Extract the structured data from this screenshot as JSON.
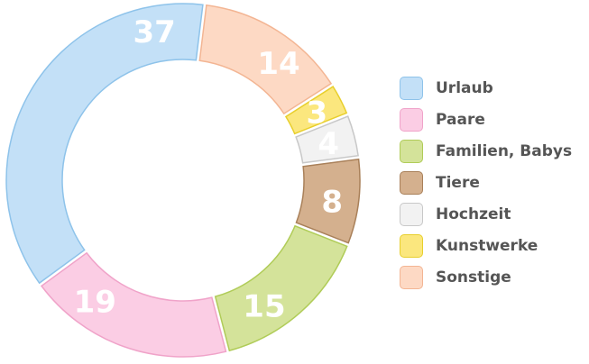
{
  "chart_data": {
    "type": "pie",
    "donut": true,
    "title": "",
    "legend_position": "right",
    "categories": [
      "Urlaub",
      "Paare",
      "Familien, Babys",
      "Tiere",
      "Hochzeit",
      "Kunstwerke",
      "Sonstige"
    ],
    "values": [
      37,
      19,
      15,
      8,
      4,
      3,
      14
    ],
    "fill_colors": [
      "#c3e0f7",
      "#fbcde4",
      "#d4e39a",
      "#d4b08e",
      "#f2f2f2",
      "#fbe77e",
      "#fdd9c4"
    ],
    "stroke_colors": [
      "#8ec3ea",
      "#f0a3c9",
      "#b0cc58",
      "#a98059",
      "#c8c8c8",
      "#e8cf2c",
      "#f3b593"
    ]
  }
}
